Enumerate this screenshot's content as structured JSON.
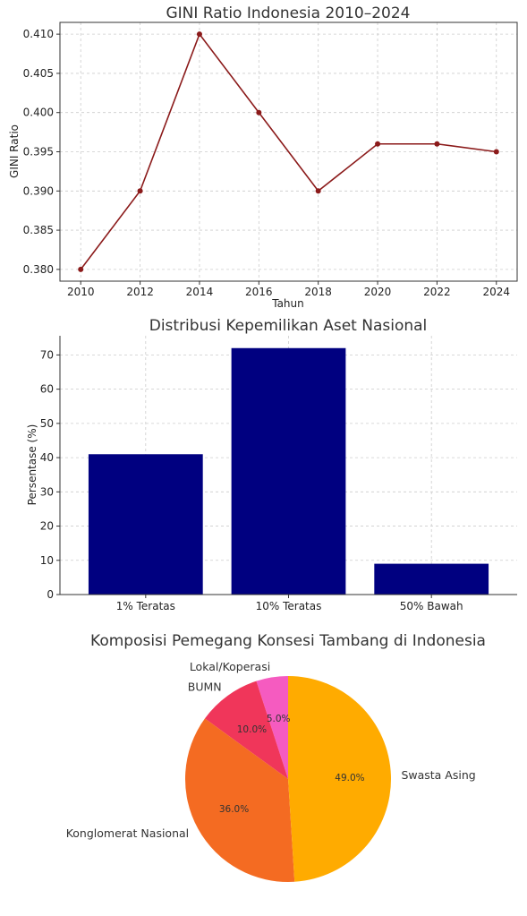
{
  "chart_data": [
    {
      "type": "line",
      "title": "GINI Ratio Indonesia 2010–2024",
      "xlabel": "Tahun",
      "ylabel": "GINI Ratio",
      "x": [
        2010,
        2012,
        2014,
        2016,
        2018,
        2020,
        2022,
        2024
      ],
      "y": [
        0.38,
        0.39,
        0.41,
        0.4,
        0.39,
        0.396,
        0.396,
        0.395
      ],
      "xticks": [
        "2010",
        "2012",
        "2014",
        "2016",
        "2018",
        "2020",
        "2022",
        "2024"
      ],
      "yticks": [
        "0.380",
        "0.385",
        "0.390",
        "0.395",
        "0.400",
        "0.405",
        "0.410"
      ],
      "xlim": [
        2009.3,
        2024.7
      ],
      "ylim": [
        0.3785,
        0.4115
      ],
      "grid": true,
      "color": "#8b1a1a"
    },
    {
      "type": "bar",
      "title": "Distribusi Kepemilikan Aset Nasional",
      "xlabel": "",
      "ylabel": "Persentase (%)",
      "categories": [
        "1% Teratas",
        "10% Teratas",
        "50% Bawah"
      ],
      "values": [
        41,
        72,
        9
      ],
      "yticks": [
        "0",
        "10",
        "20",
        "30",
        "40",
        "50",
        "60",
        "70"
      ],
      "ylim": [
        0,
        75.6
      ],
      "grid": true,
      "color": "#000080"
    },
    {
      "type": "pie",
      "title": "Komposisi Pemegang Konsesi Tambang di Indonesia",
      "labels": [
        "Lokal/Koperasi",
        "BUMN",
        "Konglomerat Nasional",
        "Swasta Asing"
      ],
      "values": [
        5.0,
        10.0,
        36.0,
        49.0
      ],
      "pct_labels": [
        "5.0%",
        "10.0%",
        "36.0%",
        "49.0%"
      ],
      "colors": [
        "#f55bc0",
        "#f0365a",
        "#f46b22",
        "#ffab00"
      ]
    }
  ]
}
